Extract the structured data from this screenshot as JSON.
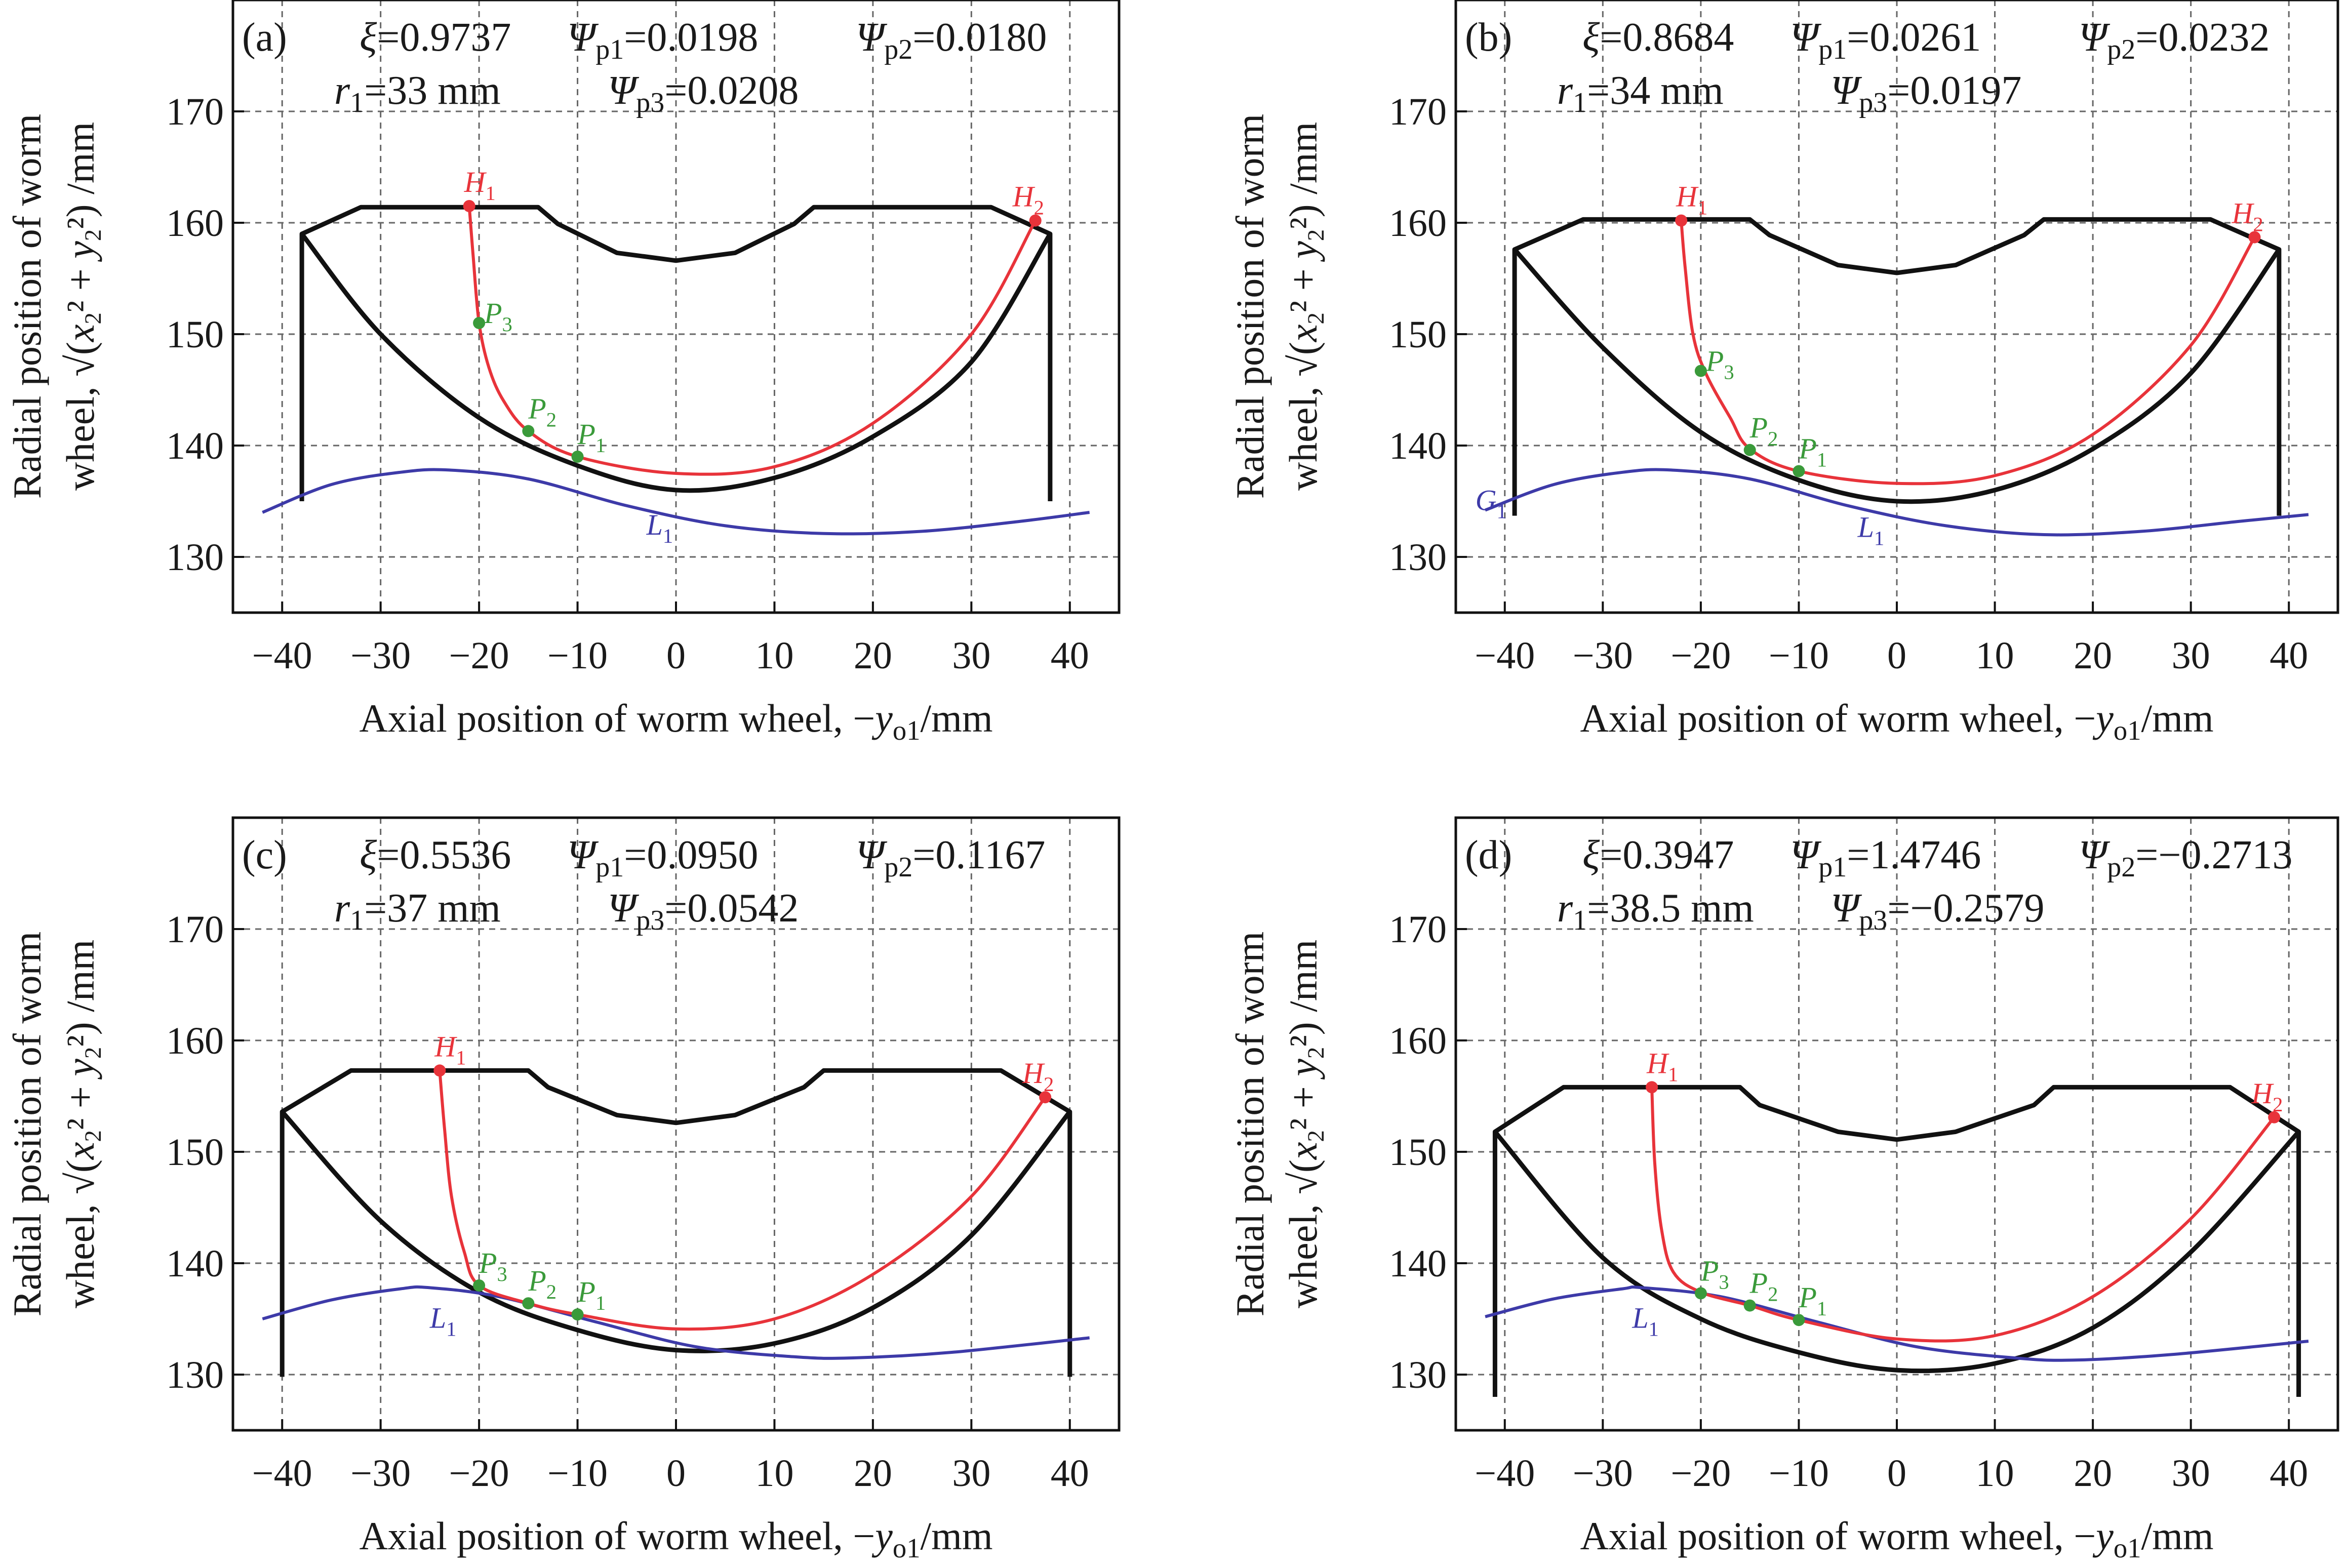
{
  "colors": {
    "boundary": "#111111",
    "hcurve": "#e8333a",
    "lcurve": "#3d3aa8",
    "point": "#3a9a3a",
    "grid": "#666666"
  },
  "chart_data": [
    {
      "type": "line",
      "panel": "(a)",
      "title": "(a)",
      "params": {
        "xi": "ξ=0.9737",
        "psi_p1": "Ψp1=0.0198",
        "psi_p2": "Ψp2=0.0180",
        "r1": "r1=33 mm",
        "psi_p3": "Ψp3=0.0208"
      },
      "xlabel": "Axial position of worm wheel, −yo1/mm",
      "ylabel_line1": "Radial position of worm",
      "ylabel_line2": "wheel, √(x2² + y2²) /mm",
      "xlim": [
        -45,
        45
      ],
      "ylim": [
        125,
        180
      ],
      "xticks": [
        -40,
        -30,
        -20,
        -10,
        0,
        10,
        20,
        30,
        40
      ],
      "yticks": [
        130,
        140,
        150,
        160,
        170
      ],
      "xtick_labels": [
        "−40",
        "−30",
        "−20",
        "−10",
        "0",
        "10",
        "20",
        "30",
        "40"
      ],
      "ytick_labels": [
        "130",
        "140",
        "150",
        "160",
        "170"
      ],
      "boundary": {
        "outline": [
          [
            -38,
            135
          ],
          [
            -38,
            159
          ],
          [
            -32,
            161.4
          ],
          [
            -14,
            161.4
          ],
          [
            -12,
            159.9
          ],
          [
            -6,
            157.3
          ],
          [
            0,
            156.6
          ],
          [
            6,
            157.3
          ],
          [
            12,
            159.9
          ],
          [
            14,
            161.4
          ],
          [
            32,
            161.4
          ],
          [
            38,
            159
          ],
          [
            38,
            135
          ]
        ],
        "arc": [
          [
            -38,
            159
          ],
          [
            -30,
            150
          ],
          [
            -20,
            142.5
          ],
          [
            -10,
            138.2
          ],
          [
            0,
            136
          ],
          [
            10,
            137.1
          ],
          [
            20,
            140.8
          ],
          [
            30,
            147.5
          ],
          [
            38,
            159
          ]
        ]
      },
      "series": [
        {
          "name": "H",
          "values": [
            [
              -21,
              161.5
            ],
            [
              -20.6,
              157
            ],
            [
              -20,
              151
            ],
            [
              -19,
              147
            ],
            [
              -17.5,
              144
            ],
            [
              -15,
              141.3
            ],
            [
              -10,
              139
            ],
            [
              0,
              137.5
            ],
            [
              10,
              138.1
            ],
            [
              20,
              142
            ],
            [
              30,
              150
            ],
            [
              36.5,
              160.2
            ]
          ]
        },
        {
          "name": "L",
          "values": [
            [
              -42,
              134
            ],
            [
              -35,
              136.5
            ],
            [
              -28,
              137.6
            ],
            [
              -23,
              137.8
            ],
            [
              -15,
              137
            ],
            [
              -5,
              134.6
            ],
            [
              5,
              132.8
            ],
            [
              15,
              132.1
            ],
            [
              25,
              132.3
            ],
            [
              35,
              133.2
            ],
            [
              42,
              134
            ]
          ]
        }
      ],
      "points": [
        {
          "label": "H1",
          "x": -21,
          "y": 161.5,
          "color": "red"
        },
        {
          "label": "H2",
          "x": 36.5,
          "y": 160.2,
          "color": "red"
        },
        {
          "label": "P3",
          "x": -20,
          "y": 151,
          "color": "green"
        },
        {
          "label": "P2",
          "x": -15,
          "y": 141.3,
          "color": "green"
        },
        {
          "label": "P1",
          "x": -10,
          "y": 139,
          "color": "green"
        }
      ],
      "labels": [
        {
          "text": "L1",
          "x": -3,
          "y": 132
        }
      ]
    },
    {
      "type": "line",
      "panel": "(b)",
      "title": "(b)",
      "params": {
        "xi": "ξ=0.8684",
        "psi_p1": "Ψp1=0.0261",
        "psi_p2": "Ψp2=0.0232",
        "r1": "r1=34 mm",
        "psi_p3": "Ψp3=0.0197"
      },
      "xlabel": "Axial position of worm wheel, −yo1/mm",
      "ylabel_line1": "Radial position of worm",
      "ylabel_line2": "wheel, √(x2² + y2²) /mm",
      "xlim": [
        -45,
        45
      ],
      "ylim": [
        125,
        180
      ],
      "xticks": [
        -40,
        -30,
        -20,
        -10,
        0,
        10,
        20,
        30,
        40
      ],
      "yticks": [
        130,
        140,
        150,
        160,
        170
      ],
      "xtick_labels": [
        "−40",
        "−30",
        "−20",
        "−10",
        "0",
        "10",
        "20",
        "30",
        "40"
      ],
      "ytick_labels": [
        "130",
        "140",
        "150",
        "160",
        "170"
      ],
      "boundary": {
        "outline": [
          [
            -39,
            133.7
          ],
          [
            -39,
            157.6
          ],
          [
            -32,
            160.3
          ],
          [
            -15,
            160.3
          ],
          [
            -13,
            158.9
          ],
          [
            -6,
            156.2
          ],
          [
            0,
            155.5
          ],
          [
            6,
            156.2
          ],
          [
            13,
            158.9
          ],
          [
            15,
            160.3
          ],
          [
            32,
            160.3
          ],
          [
            39,
            157.6
          ],
          [
            39,
            133.7
          ]
        ],
        "arc": [
          [
            -39,
            157.6
          ],
          [
            -30,
            148.8
          ],
          [
            -20,
            141.2
          ],
          [
            -10,
            136.9
          ],
          [
            0,
            135
          ],
          [
            10,
            136
          ],
          [
            20,
            139.7
          ],
          [
            30,
            146.5
          ],
          [
            39,
            157.6
          ]
        ]
      },
      "series": [
        {
          "name": "H",
          "values": [
            [
              -22,
              160.2
            ],
            [
              -21.6,
              156
            ],
            [
              -20.8,
              150
            ],
            [
              -19.5,
              146.5
            ],
            [
              -17,
              142.5
            ],
            [
              -15,
              139.7
            ],
            [
              -10,
              137.7
            ],
            [
              0,
              136.6
            ],
            [
              10,
              137.3
            ],
            [
              20,
              141
            ],
            [
              30,
              149
            ],
            [
              36.5,
              158.7
            ]
          ]
        },
        {
          "name": "L",
          "values": [
            [
              -42,
              134.2
            ],
            [
              -35,
              136.5
            ],
            [
              -28,
              137.6
            ],
            [
              -23,
              137.8
            ],
            [
              -15,
              137
            ],
            [
              -5,
              134.6
            ],
            [
              5,
              132.8
            ],
            [
              15,
              132
            ],
            [
              25,
              132.3
            ],
            [
              35,
              133.2
            ],
            [
              42,
              133.8
            ]
          ]
        }
      ],
      "points": [
        {
          "label": "H1",
          "x": -22,
          "y": 160.2,
          "color": "red"
        },
        {
          "label": "H2",
          "x": 36.5,
          "y": 158.7,
          "color": "red"
        },
        {
          "label": "P3",
          "x": -20,
          "y": 146.7,
          "color": "green"
        },
        {
          "label": "P2",
          "x": -15,
          "y": 139.6,
          "color": "green"
        },
        {
          "label": "P1",
          "x": -10,
          "y": 137.7,
          "color": "green"
        }
      ],
      "labels": [
        {
          "text": "L1",
          "x": -4,
          "y": 131.8
        },
        {
          "text": "G1",
          "x": -43,
          "y": 134.2
        }
      ]
    },
    {
      "type": "line",
      "panel": "(c)",
      "title": "(c)",
      "params": {
        "xi": "ξ=0.5536",
        "psi_p1": "Ψp1=0.0950",
        "psi_p2": "Ψp2=0.1167",
        "r1": "r1=37 mm",
        "psi_p3": "Ψp3=0.0542"
      },
      "xlabel": "Axial position of worm wheel, −yo1/mm",
      "ylabel_line1": "Radial position of worm",
      "ylabel_line2": "wheel, √(x2² + y2²) /mm",
      "xlim": [
        -45,
        45
      ],
      "ylim": [
        125,
        180
      ],
      "xticks": [
        -40,
        -30,
        -20,
        -10,
        0,
        10,
        20,
        30,
        40
      ],
      "yticks": [
        130,
        140,
        150,
        160,
        170
      ],
      "xtick_labels": [
        "−40",
        "−30",
        "−20",
        "−10",
        "0",
        "10",
        "20",
        "30",
        "40"
      ],
      "ytick_labels": [
        "130",
        "140",
        "150",
        "160",
        "170"
      ],
      "boundary": {
        "outline": [
          [
            -40,
            129.8
          ],
          [
            -40,
            153.6
          ],
          [
            -33,
            157.3
          ],
          [
            -15,
            157.3
          ],
          [
            -13,
            155.8
          ],
          [
            -6,
            153.3
          ],
          [
            0,
            152.6
          ],
          [
            6,
            153.3
          ],
          [
            13,
            155.8
          ],
          [
            15,
            157.3
          ],
          [
            33,
            157.3
          ],
          [
            40,
            153.6
          ],
          [
            40,
            129.8
          ]
        ],
        "arc": [
          [
            -40,
            153.6
          ],
          [
            -30,
            143.8
          ],
          [
            -20,
            137.4
          ],
          [
            -10,
            134
          ],
          [
            0,
            132.2
          ],
          [
            10,
            132.8
          ],
          [
            20,
            136
          ],
          [
            30,
            142.5
          ],
          [
            40,
            153.6
          ]
        ]
      },
      "series": [
        {
          "name": "H",
          "values": [
            [
              -24,
              157.3
            ],
            [
              -23.5,
              152
            ],
            [
              -22.8,
              146
            ],
            [
              -21.5,
              141
            ],
            [
              -20,
              138
            ],
            [
              -15,
              136.4
            ],
            [
              -10,
              135.4
            ],
            [
              0,
              134.1
            ],
            [
              10,
              135
            ],
            [
              20,
              139
            ],
            [
              30,
              146
            ],
            [
              37.5,
              154.9
            ]
          ]
        },
        {
          "name": "L",
          "values": [
            [
              -42,
              135
            ],
            [
              -35,
              136.7
            ],
            [
              -28,
              137.7
            ],
            [
              -25,
              137.8
            ],
            [
              -18,
              137
            ],
            [
              -8,
              134.7
            ],
            [
              2,
              132.5
            ],
            [
              12,
              131.6
            ],
            [
              18,
              131.5
            ],
            [
              28,
              132
            ],
            [
              42,
              133.3
            ]
          ]
        }
      ],
      "points": [
        {
          "label": "H1",
          "x": -24,
          "y": 157.3,
          "color": "red"
        },
        {
          "label": "H2",
          "x": 37.5,
          "y": 154.9,
          "color": "red"
        },
        {
          "label": "P3",
          "x": -20,
          "y": 138,
          "color": "green"
        },
        {
          "label": "P2",
          "x": -15,
          "y": 136.4,
          "color": "green"
        },
        {
          "label": "P1",
          "x": -10,
          "y": 135.4,
          "color": "green"
        }
      ],
      "labels": [
        {
          "text": "L1",
          "x": -25,
          "y": 134.2
        }
      ]
    },
    {
      "type": "line",
      "panel": "(d)",
      "title": "(d)",
      "params": {
        "xi": "ξ=0.3947",
        "psi_p1": "Ψp1=1.4746",
        "psi_p2": "Ψp2=−0.2713",
        "r1": "r1=38.5 mm",
        "psi_p3": "Ψp3=−0.2579"
      },
      "xlabel": "Axial position of worm wheel, −yo1/mm",
      "ylabel_line1": "Radial position of worm",
      "ylabel_line2": "wheel, √(x2² + y2²) /mm",
      "xlim": [
        -45,
        45
      ],
      "ylim": [
        125,
        180
      ],
      "xticks": [
        -40,
        -30,
        -20,
        -10,
        0,
        10,
        20,
        30,
        40
      ],
      "yticks": [
        130,
        140,
        150,
        160,
        170
      ],
      "xtick_labels": [
        "−40",
        "−30",
        "−20",
        "−10",
        "0",
        "10",
        "20",
        "30",
        "40"
      ],
      "ytick_labels": [
        "130",
        "140",
        "150",
        "160",
        "170"
      ],
      "boundary": {
        "outline": [
          [
            -41,
            128
          ],
          [
            -41,
            151.8
          ],
          [
            -34,
            155.8
          ],
          [
            -16,
            155.8
          ],
          [
            -14,
            154.2
          ],
          [
            -6,
            151.8
          ],
          [
            0,
            151.1
          ],
          [
            6,
            151.8
          ],
          [
            14,
            154.2
          ],
          [
            16,
            155.8
          ],
          [
            34,
            155.8
          ],
          [
            41,
            151.8
          ],
          [
            41,
            128
          ]
        ],
        "arc": [
          [
            -41,
            151.8
          ],
          [
            -30,
            140.5
          ],
          [
            -20,
            135
          ],
          [
            -10,
            132
          ],
          [
            0,
            130.4
          ],
          [
            10,
            131
          ],
          [
            20,
            134.2
          ],
          [
            30,
            141
          ],
          [
            41,
            151.8
          ]
        ]
      },
      "series": [
        {
          "name": "H",
          "values": [
            [
              -25,
              155.8
            ],
            [
              -24.7,
              149
            ],
            [
              -24,
              143
            ],
            [
              -22.8,
              139.2
            ],
            [
              -20,
              137.4
            ],
            [
              -15,
              136.2
            ],
            [
              -10,
              134.9
            ],
            [
              0,
              133.2
            ],
            [
              10,
              133.5
            ],
            [
              20,
              137
            ],
            [
              30,
              144
            ],
            [
              38.5,
              153.1
            ]
          ]
        },
        {
          "name": "L",
          "values": [
            [
              -42,
              135.2
            ],
            [
              -35,
              136.8
            ],
            [
              -28,
              137.7
            ],
            [
              -26,
              137.8
            ],
            [
              -18,
              137
            ],
            [
              -8,
              134.7
            ],
            [
              2,
              132.5
            ],
            [
              12,
              131.5
            ],
            [
              18,
              131.3
            ],
            [
              28,
              131.8
            ],
            [
              42,
              133
            ]
          ]
        }
      ],
      "points": [
        {
          "label": "H1",
          "x": -25,
          "y": 155.8,
          "color": "red"
        },
        {
          "label": "H2",
          "x": 38.5,
          "y": 153.1,
          "color": "red"
        },
        {
          "label": "P3",
          "x": -20,
          "y": 137.3,
          "color": "green"
        },
        {
          "label": "P2",
          "x": -15,
          "y": 136.2,
          "color": "green"
        },
        {
          "label": "P1",
          "x": -10,
          "y": 134.9,
          "color": "green"
        }
      ],
      "labels": [
        {
          "text": "L1",
          "x": -27,
          "y": 134.2
        }
      ]
    }
  ]
}
